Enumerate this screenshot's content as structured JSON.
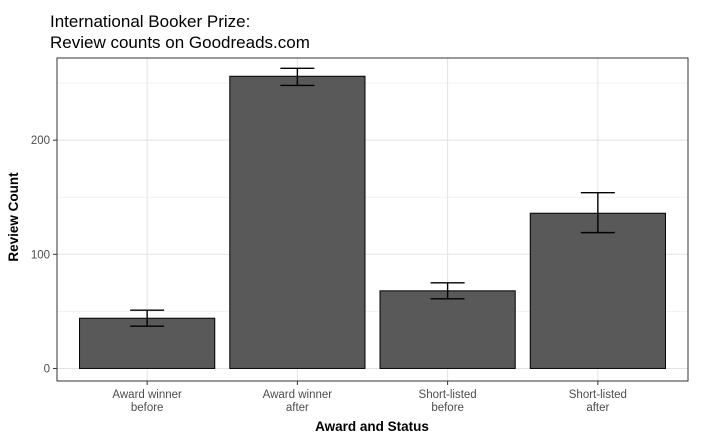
{
  "chart_data": {
    "type": "bar",
    "title_lines": [
      "International Booker Prize:",
      "Review counts on Goodreads.com"
    ],
    "xlabel": "Award and Status",
    "ylabel": "Review Count",
    "categories": [
      [
        "Award winner",
        "before"
      ],
      [
        "Award winner",
        "after"
      ],
      [
        "Short-listed",
        "before"
      ],
      [
        "Short-listed",
        "after"
      ]
    ],
    "values": [
      44,
      256,
      68,
      136
    ],
    "error_low": [
      37,
      248,
      61,
      119
    ],
    "error_high": [
      51,
      263,
      75,
      154
    ],
    "yticks": [
      0,
      100,
      200
    ],
    "ylim": [
      -11,
      272
    ],
    "grid": true,
    "legend": "none",
    "colors": {
      "bar_fill": "#595959",
      "bar_stroke": "#000000",
      "grid_major": "#e3e3e3",
      "grid_minor": "#f1f1f1",
      "panel_border": "#333333",
      "tick_text": "#4d4d4d"
    }
  }
}
